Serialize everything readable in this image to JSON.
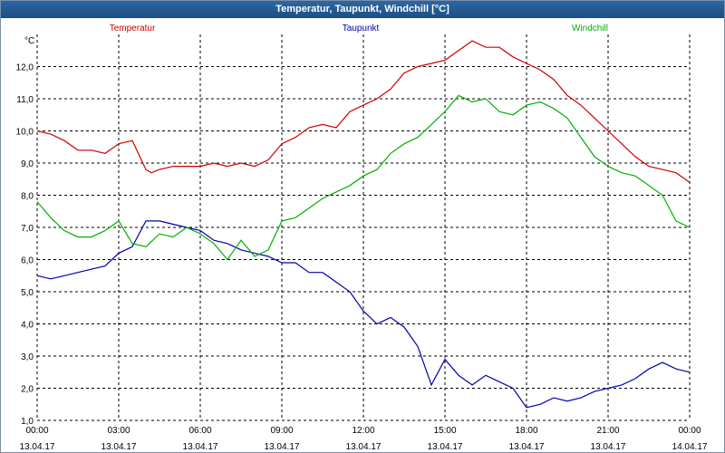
{
  "window": {
    "title": "Temperatur, Taupunkt, Windchill [°C]"
  },
  "colors": {
    "Temperatur": "#d00000",
    "Taupunkt": "#0000b0",
    "Windchill": "#00b000",
    "grid": "#000000"
  },
  "chart_data": {
    "type": "line",
    "title": "Temperatur, Taupunkt, Windchill [°C]",
    "ylabel": "°C",
    "ylim": [
      1.0,
      13.0
    ],
    "yticks": [
      "1,0",
      "2,0",
      "3,0",
      "4,0",
      "5,0",
      "6,0",
      "7,0",
      "8,0",
      "9,0",
      "10,0",
      "11,0",
      "12,0"
    ],
    "xlim": [
      0,
      24
    ],
    "xticks": [
      {
        "time": "00:00",
        "date": "13.04.17"
      },
      {
        "time": "03:00",
        "date": "13.04.17"
      },
      {
        "time": "06:00",
        "date": "13.04.17"
      },
      {
        "time": "09:00",
        "date": "13.04.17"
      },
      {
        "time": "12:00",
        "date": "13.04.17"
      },
      {
        "time": "15:00",
        "date": "13.04.17"
      },
      {
        "time": "18:00",
        "date": "13.04.17"
      },
      {
        "time": "21:00",
        "date": "13.04.17"
      },
      {
        "time": "00:00",
        "date": "14.04.17"
      }
    ],
    "legend_placement": "top",
    "grid": true,
    "series": [
      {
        "name": "Temperatur",
        "points": [
          [
            0,
            10.0
          ],
          [
            0.5,
            9.9
          ],
          [
            1,
            9.7
          ],
          [
            1.5,
            9.4
          ],
          [
            2,
            9.4
          ],
          [
            2.5,
            9.3
          ],
          [
            3,
            9.6
          ],
          [
            3.5,
            9.7
          ],
          [
            4,
            8.8
          ],
          [
            4.2,
            8.7
          ],
          [
            4.5,
            8.8
          ],
          [
            5,
            8.9
          ],
          [
            5.5,
            8.9
          ],
          [
            6,
            8.9
          ],
          [
            6.5,
            9.0
          ],
          [
            7,
            8.9
          ],
          [
            7.5,
            9.0
          ],
          [
            8,
            8.9
          ],
          [
            8.5,
            9.1
          ],
          [
            9,
            9.6
          ],
          [
            9.5,
            9.8
          ],
          [
            10,
            10.1
          ],
          [
            10.5,
            10.2
          ],
          [
            11,
            10.1
          ],
          [
            11.5,
            10.6
          ],
          [
            12,
            10.8
          ],
          [
            12.5,
            11.0
          ],
          [
            13,
            11.3
          ],
          [
            13.5,
            11.8
          ],
          [
            14,
            12.0
          ],
          [
            14.5,
            12.1
          ],
          [
            15,
            12.2
          ],
          [
            15.5,
            12.5
          ],
          [
            16,
            12.8
          ],
          [
            16.5,
            12.6
          ],
          [
            17,
            12.6
          ],
          [
            17.5,
            12.3
          ],
          [
            18,
            12.1
          ],
          [
            18.5,
            11.9
          ],
          [
            19,
            11.6
          ],
          [
            19.5,
            11.1
          ],
          [
            20,
            10.8
          ],
          [
            20.5,
            10.4
          ],
          [
            21,
            10.0
          ],
          [
            21.5,
            9.6
          ],
          [
            22,
            9.2
          ],
          [
            22.5,
            8.9
          ],
          [
            23,
            8.8
          ],
          [
            23.5,
            8.7
          ],
          [
            24,
            8.4
          ]
        ]
      },
      {
        "name": "Taupunkt",
        "points": [
          [
            0,
            5.5
          ],
          [
            0.5,
            5.4
          ],
          [
            1,
            5.5
          ],
          [
            1.5,
            5.6
          ],
          [
            2,
            5.7
          ],
          [
            2.5,
            5.8
          ],
          [
            3,
            6.2
          ],
          [
            3.5,
            6.4
          ],
          [
            4,
            7.2
          ],
          [
            4.5,
            7.2
          ],
          [
            5,
            7.1
          ],
          [
            5.5,
            7.0
          ],
          [
            6,
            6.9
          ],
          [
            6.5,
            6.6
          ],
          [
            7,
            6.5
          ],
          [
            7.5,
            6.3
          ],
          [
            8,
            6.2
          ],
          [
            8.5,
            6.1
          ],
          [
            9,
            5.9
          ],
          [
            9.5,
            5.9
          ],
          [
            10,
            5.6
          ],
          [
            10.5,
            5.6
          ],
          [
            11,
            5.3
          ],
          [
            11.5,
            5.0
          ],
          [
            12,
            4.4
          ],
          [
            12.5,
            4.0
          ],
          [
            13,
            4.2
          ],
          [
            13.5,
            3.9
          ],
          [
            14,
            3.3
          ],
          [
            14.5,
            2.1
          ],
          [
            15,
            2.9
          ],
          [
            15.5,
            2.4
          ],
          [
            16,
            2.1
          ],
          [
            16.5,
            2.4
          ],
          [
            17,
            2.2
          ],
          [
            17.5,
            2.0
          ],
          [
            18,
            1.4
          ],
          [
            18.5,
            1.5
          ],
          [
            19,
            1.7
          ],
          [
            19.5,
            1.6
          ],
          [
            20,
            1.7
          ],
          [
            20.5,
            1.9
          ],
          [
            21,
            2.0
          ],
          [
            21.5,
            2.1
          ],
          [
            22,
            2.3
          ],
          [
            22.5,
            2.6
          ],
          [
            23,
            2.8
          ],
          [
            23.5,
            2.6
          ],
          [
            24,
            2.5
          ]
        ]
      },
      {
        "name": "Windchill",
        "points": [
          [
            0,
            7.8
          ],
          [
            0.5,
            7.3
          ],
          [
            1,
            6.9
          ],
          [
            1.5,
            6.7
          ],
          [
            2,
            6.7
          ],
          [
            2.5,
            6.9
          ],
          [
            3,
            7.2
          ],
          [
            3.5,
            6.5
          ],
          [
            4,
            6.4
          ],
          [
            4.5,
            6.8
          ],
          [
            5,
            6.7
          ],
          [
            5.5,
            7.0
          ],
          [
            6,
            6.8
          ],
          [
            6.5,
            6.5
          ],
          [
            7,
            6.0
          ],
          [
            7.5,
            6.6
          ],
          [
            8,
            6.1
          ],
          [
            8.5,
            6.3
          ],
          [
            9,
            7.2
          ],
          [
            9.5,
            7.3
          ],
          [
            10,
            7.6
          ],
          [
            10.5,
            7.9
          ],
          [
            11,
            8.1
          ],
          [
            11.5,
            8.3
          ],
          [
            12,
            8.6
          ],
          [
            12.5,
            8.8
          ],
          [
            13,
            9.3
          ],
          [
            13.5,
            9.6
          ],
          [
            14,
            9.8
          ],
          [
            14.5,
            10.2
          ],
          [
            15,
            10.6
          ],
          [
            15.5,
            11.1
          ],
          [
            16,
            10.9
          ],
          [
            16.5,
            11.0
          ],
          [
            17,
            10.6
          ],
          [
            17.5,
            10.5
          ],
          [
            18,
            10.8
          ],
          [
            18.5,
            10.9
          ],
          [
            19,
            10.7
          ],
          [
            19.5,
            10.4
          ],
          [
            20,
            9.8
          ],
          [
            20.5,
            9.2
          ],
          [
            21,
            8.9
          ],
          [
            21.5,
            8.7
          ],
          [
            22,
            8.6
          ],
          [
            22.5,
            8.3
          ],
          [
            23,
            8.0
          ],
          [
            23.5,
            7.2
          ],
          [
            24,
            7.0
          ]
        ]
      }
    ]
  }
}
